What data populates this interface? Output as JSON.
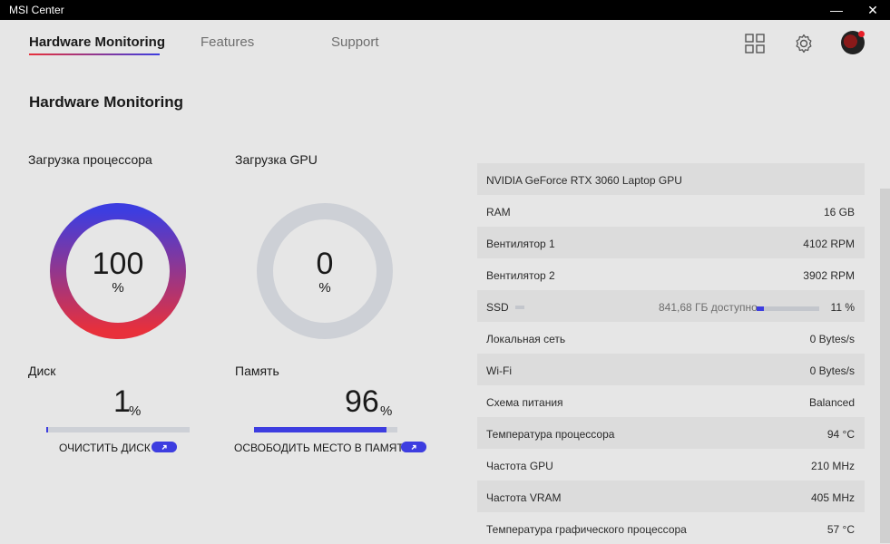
{
  "window": {
    "title": "MSI Center",
    "minimize": "—",
    "close": "✕"
  },
  "nav": {
    "tabs": [
      {
        "label": "Hardware Monitoring",
        "active": true
      },
      {
        "label": "Features",
        "active": false
      },
      {
        "label": "Support",
        "active": false
      }
    ]
  },
  "header_icons": [
    "grid-icon",
    "gear-icon",
    "avatar"
  ],
  "page": {
    "title": "Hardware Monitoring"
  },
  "cpu": {
    "label": "Загрузка процессора",
    "value": "100",
    "unit": "%",
    "fraction": 1.0
  },
  "gpu": {
    "label": "Загрузка GPU",
    "value": "0",
    "unit": "%",
    "fraction": 0.0
  },
  "disk": {
    "label": "Диск",
    "value": "1",
    "unit": "%",
    "fraction": 0.01,
    "action": "ОЧИСТИТЬ ДИСК"
  },
  "memory": {
    "label": "Память",
    "value": "96",
    "unit": "%",
    "fraction": 0.96,
    "action": "ОСВОБОДИТЬ МЕСТО В ПАМЯТИ"
  },
  "stats": [
    {
      "key": "NVIDIA GeForce RTX 3060 Laptop GPU",
      "value": ""
    },
    {
      "key": "RAM",
      "value": "16 GB"
    },
    {
      "key": "Вентилятор 1",
      "value": "4102 RPM"
    },
    {
      "key": "Вентилятор 2",
      "value": "3902 RPM"
    },
    {
      "key": "SSD",
      "value": "11 %",
      "free": "841,68 ГБ доступно",
      "fraction": 0.11
    },
    {
      "key": "Локальная сеть",
      "value": "0 Bytes/s"
    },
    {
      "key": "Wi-Fi",
      "value": "0 Bytes/s"
    },
    {
      "key": "Схема питания",
      "value": "Balanced"
    },
    {
      "key": "Температура процессора",
      "value": "94 °C"
    },
    {
      "key": "Частота GPU",
      "value": "210 MHz"
    },
    {
      "key": "Частота VRAM",
      "value": "405 MHz"
    },
    {
      "key": "Температура графического процессора",
      "value": "57 °C"
    }
  ],
  "colors": {
    "accent": "#3d3de0",
    "accent_red": "#e8303b",
    "track": "#cdd0d6"
  }
}
